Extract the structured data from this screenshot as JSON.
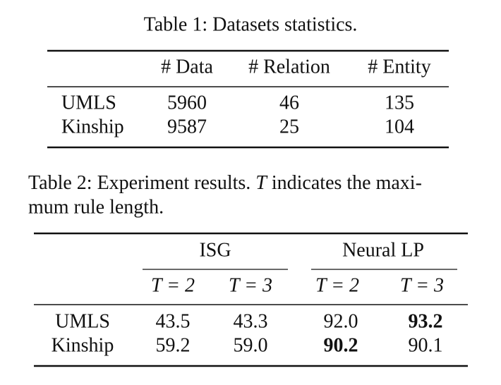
{
  "table1": {
    "caption": "Table 1: Datasets statistics.",
    "header": [
      "# Data",
      "# Relation",
      "# Entity"
    ],
    "rows": [
      [
        "UMLS",
        "5960",
        "46",
        "135"
      ],
      [
        "Kinship",
        "9587",
        "25",
        "104"
      ]
    ]
  },
  "table2": {
    "caption": {
      "line1_a": "Table 2: Experiment results.",
      "variable": "T",
      "line1_b": "indicates the maxi-",
      "line2": "mum rule length."
    },
    "groups": [
      "ISG",
      "Neural LP"
    ],
    "subheader": [
      "T = 2",
      "T = 3",
      "T = 2",
      "T = 3"
    ],
    "rows": [
      [
        "UMLS",
        "43.5",
        "43.3",
        "92.0",
        "93.2"
      ],
      [
        "Kinship",
        "59.2",
        "59.0",
        "90.2",
        "90.1"
      ]
    ]
  }
}
